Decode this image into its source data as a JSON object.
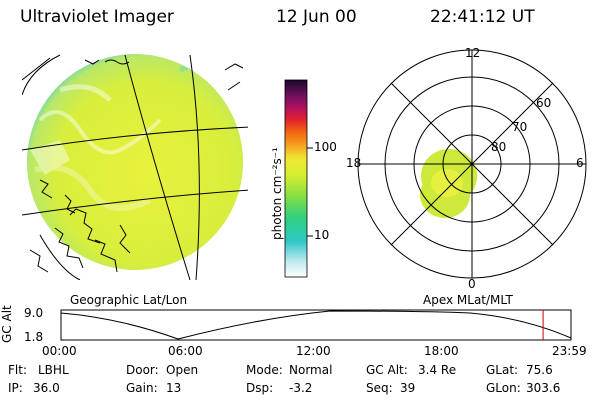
{
  "header": {
    "title": "Ultraviolet Imager",
    "date": "12 Jun 00",
    "time": "22:41:12 UT"
  },
  "colorbar": {
    "unit_label": "photon cm⁻²s⁻¹",
    "ticks": [
      "100",
      "10"
    ]
  },
  "polar_plot": {
    "mlt_labels": {
      "top": "12",
      "left": "18",
      "right": "6",
      "bottom": "0"
    },
    "lat_labels": [
      "60",
      "70",
      "80"
    ],
    "caption": "Apex MLat/MLT"
  },
  "geo_plot": {
    "caption": "Geographic Lat/Lon"
  },
  "altitude_plot": {
    "ylabel": "GC Alt",
    "y_ticks": [
      "9.0",
      "1.8"
    ],
    "x_ticks": [
      "00:00",
      "06:00",
      "12:00",
      "18:00",
      "23:59"
    ],
    "current_time_fraction": 0.9453
  },
  "info": {
    "filter": {
      "label": "Flt:",
      "value": "LBHL"
    },
    "ip": {
      "label": "IP:",
      "value": "36.0"
    },
    "door": {
      "label": "Door:",
      "value": "Open"
    },
    "gain": {
      "label": "Gain:",
      "value": "13"
    },
    "mode": {
      "label": "Mode:",
      "value": "Normal"
    },
    "dsp": {
      "label": "Dsp:",
      "value": "-3.2"
    },
    "gc_alt": {
      "label": "GC Alt:",
      "value": "3.4 Re"
    },
    "seq": {
      "label": "Seq:",
      "value": "39"
    },
    "glat": {
      "label": "GLat:",
      "value": "75.6"
    },
    "glon": {
      "label": "GLon:",
      "value": "303.6"
    }
  },
  "colors": {
    "background": "#ffffff",
    "line": "#000000",
    "disk_fill": "#dcef3a",
    "current_time_marker": "#cc0000"
  }
}
